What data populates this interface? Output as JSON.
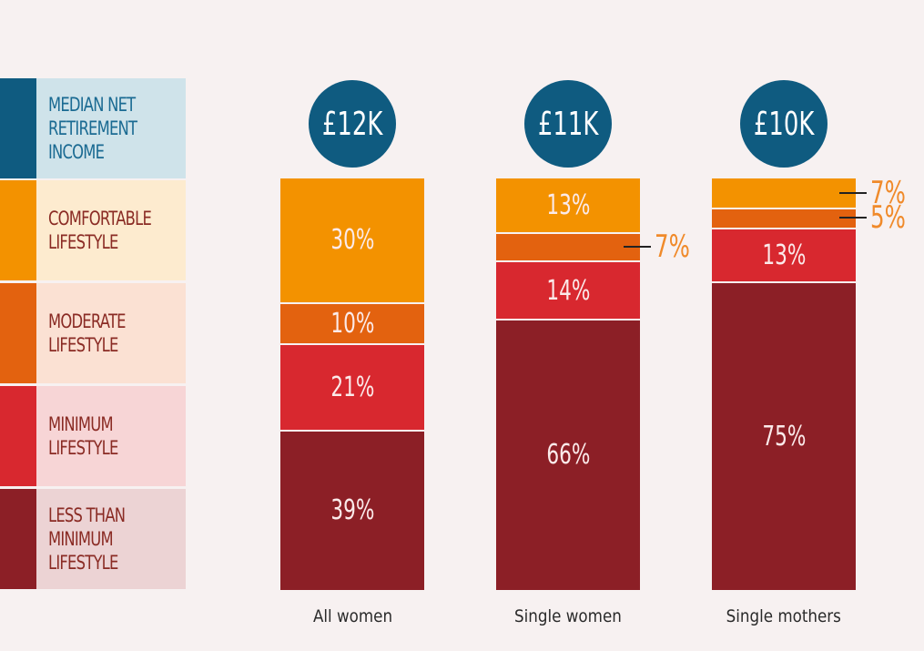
{
  "legend": [
    {
      "label": "MEDIAN NET\nRETIREMENT\nINCOME",
      "swatch": "#0f5b80",
      "bg": "#cfe3ea",
      "text": "#1a6a92"
    },
    {
      "label": "COMFORTABLE\nLIFESTYLE",
      "swatch": "#f39200",
      "bg": "#fdebcf",
      "text": "#8a2b24"
    },
    {
      "label": "MODERATE\nLIFESTYLE",
      "swatch": "#e3620f",
      "bg": "#fbe1d3",
      "text": "#8a2b24"
    },
    {
      "label": "MINIMUM\nLIFESTYLE",
      "swatch": "#d8282f",
      "bg": "#f7d5d6",
      "text": "#8a2b24"
    },
    {
      "label": "LESS THAN\nMINIMUM\nLIFESTYLE",
      "swatch": "#8c1f26",
      "bg": "#ecd3d4",
      "text": "#8a2b24"
    }
  ],
  "chart_data": {
    "type": "bar",
    "stacked": true,
    "categories": [
      "All women",
      "Single women",
      "Single mothers"
    ],
    "median_income": [
      "£12K",
      "£11K",
      "£10K"
    ],
    "series": [
      {
        "name": "COMFORTABLE LIFESTYLE",
        "color": "#f39200",
        "values": [
          30,
          13,
          7
        ],
        "labels": [
          "30%",
          "13%",
          "7%"
        ]
      },
      {
        "name": "MODERATE LIFESTYLE",
        "color": "#e3620f",
        "values": [
          10,
          7,
          5
        ],
        "labels": [
          "10%",
          "7%",
          "5%"
        ]
      },
      {
        "name": "MINIMUM LIFESTYLE",
        "color": "#d8282f",
        "values": [
          21,
          14,
          13
        ],
        "labels": [
          "21%",
          "14%",
          "13%"
        ]
      },
      {
        "name": "LESS THAN MINIMUM LIFESTYLE",
        "color": "#8c1f26",
        "values": [
          39,
          66,
          75
        ],
        "labels": [
          "39%",
          "66%",
          "75%"
        ]
      }
    ],
    "ylim": [
      0,
      100
    ],
    "xlabel": "",
    "ylabel": ""
  }
}
